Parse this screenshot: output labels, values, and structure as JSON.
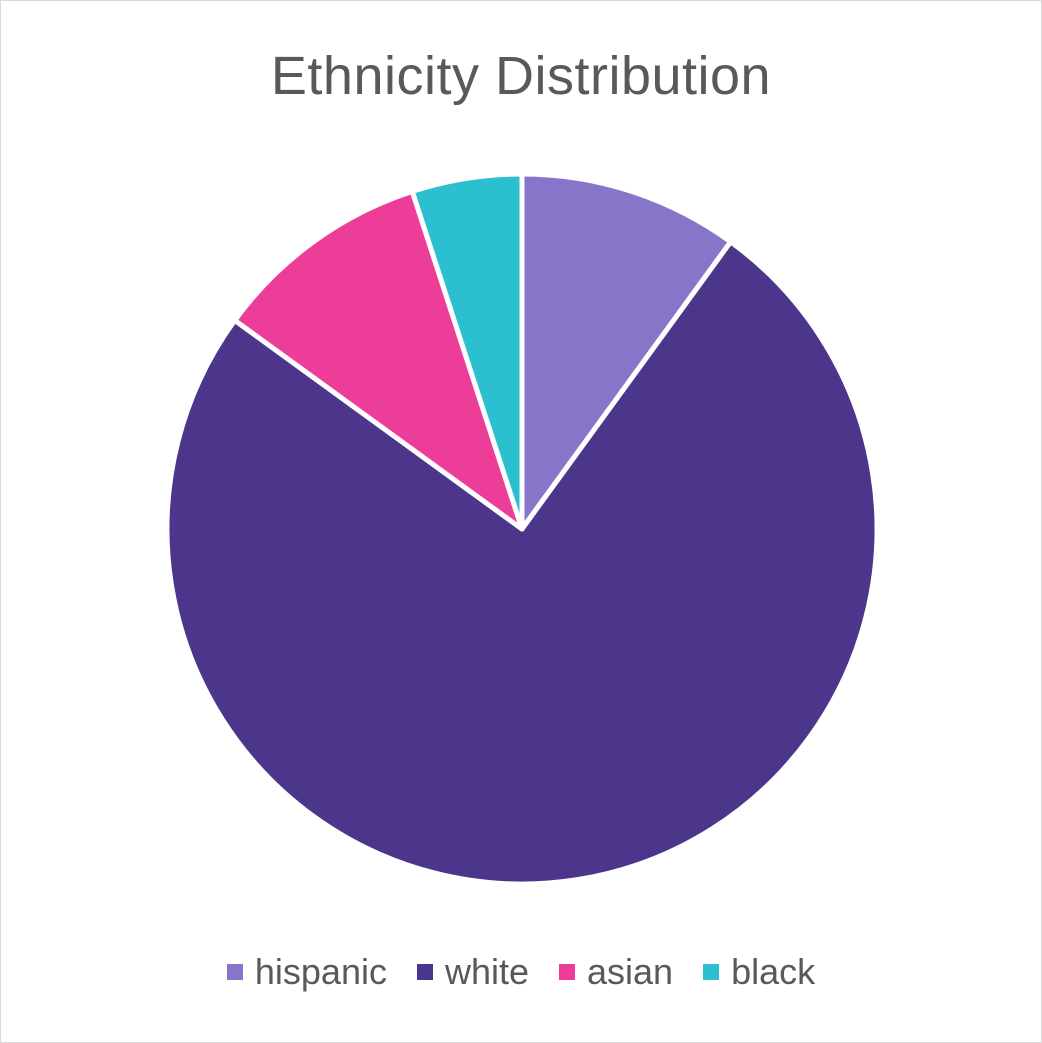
{
  "chart_data": {
    "type": "pie",
    "title": "Ethnicity Distribution",
    "categories": [
      "hispanic",
      "white",
      "asian",
      "black"
    ],
    "values": [
      10,
      75,
      10,
      5
    ],
    "colors": [
      "#8675C9",
      "#4B368C",
      "#EC3D98",
      "#2CBFCF"
    ],
    "legend_position": "bottom",
    "start_angle": "top",
    "direction": "clockwise"
  }
}
